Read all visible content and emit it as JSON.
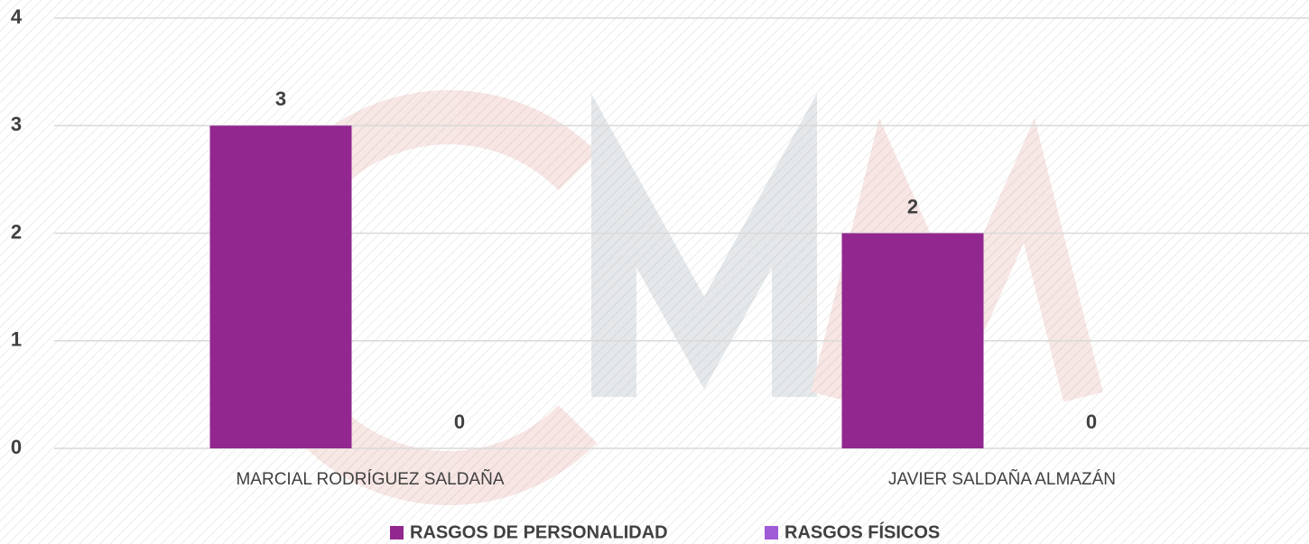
{
  "chart_data": {
    "type": "bar",
    "categories": [
      "MARCIAL RODRÍGUEZ SALDAÑA",
      "JAVIER SALDAÑA ALMAZÁN"
    ],
    "series": [
      {
        "name": "RASGOS DE PERSONALIDAD",
        "color": "#92278f",
        "values": [
          3,
          2
        ]
      },
      {
        "name": "RASGOS FÍSICOS",
        "color": "#a05cd6",
        "values": [
          0,
          0
        ]
      }
    ],
    "ylim": [
      0,
      4
    ],
    "yticks": [
      0,
      1,
      2,
      3,
      4
    ],
    "grid": true,
    "legend": "bottom"
  }
}
